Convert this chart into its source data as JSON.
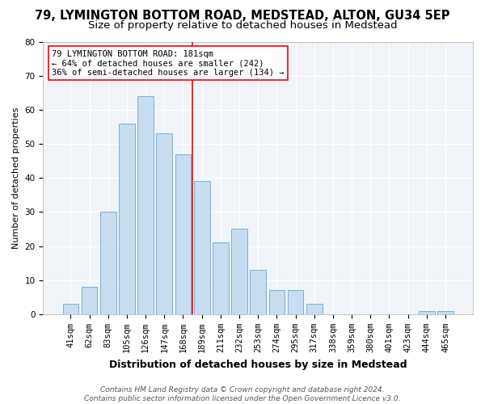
{
  "title1": "79, LYMINGTON BOTTOM ROAD, MEDSTEAD, ALTON, GU34 5EP",
  "title2": "Size of property relative to detached houses in Medstead",
  "xlabel": "Distribution of detached houses by size in Medstead",
  "ylabel": "Number of detached properties",
  "bar_labels": [
    "41sqm",
    "62sqm",
    "83sqm",
    "105sqm",
    "126sqm",
    "147sqm",
    "168sqm",
    "189sqm",
    "211sqm",
    "232sqm",
    "253sqm",
    "274sqm",
    "295sqm",
    "317sqm",
    "338sqm",
    "359sqm",
    "380sqm",
    "401sqm",
    "423sqm",
    "444sqm",
    "465sqm"
  ],
  "bar_values": [
    3,
    8,
    30,
    56,
    64,
    53,
    47,
    39,
    21,
    25,
    13,
    7,
    7,
    3,
    0,
    0,
    0,
    0,
    0,
    1,
    1
  ],
  "bar_color": "#c8ddf0",
  "bar_edge_color": "#7ab0d8",
  "red_line_color": "red",
  "annotation_line1": "79 LYMINGTON BOTTOM ROAD: 181sqm",
  "annotation_line2": "← 64% of detached houses are smaller (242)",
  "annotation_line3": "36% of semi-detached houses are larger (134) →",
  "ylim": [
    0,
    80
  ],
  "yticks": [
    0,
    10,
    20,
    30,
    40,
    50,
    60,
    70,
    80
  ],
  "title1_fontsize": 10.5,
  "title2_fontsize": 9.5,
  "xlabel_fontsize": 9,
  "ylabel_fontsize": 8,
  "tick_fontsize": 7.5,
  "annot_fontsize": 7.5,
  "footnote": "Contains HM Land Registry data © Crown copyright and database right 2024.\nContains public sector information licensed under the Open Government Licence v3.0.",
  "footnote_fontsize": 6.5,
  "plot_bg_color": "#f0f4f8",
  "grid_color": "#ffffff"
}
